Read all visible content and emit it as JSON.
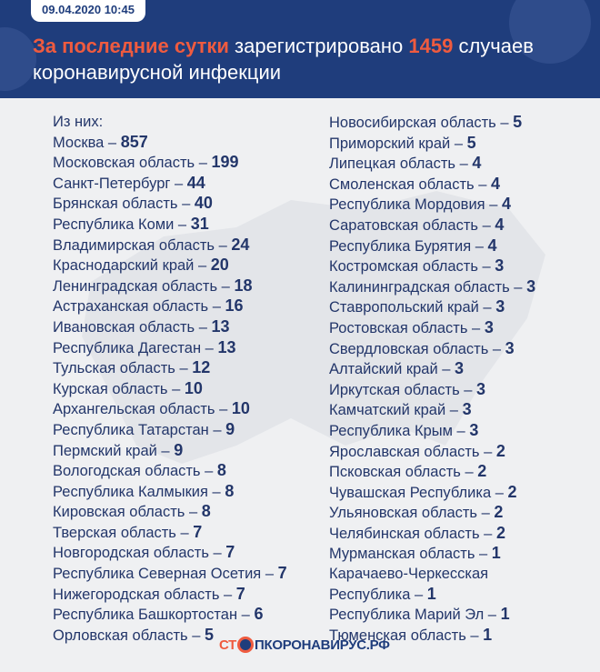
{
  "header": {
    "date": "09.04.2020 10:45",
    "title_accent": "За последние сутки",
    "title_mid": " зарегистрировано ",
    "title_number": "1459",
    "title_end": " случаев коронавирусной инфекции"
  },
  "left_intro": "Из них:",
  "left": [
    {
      "name": "Москва",
      "value": "857"
    },
    {
      "name": "Московская область",
      "value": "199"
    },
    {
      "name": "Санкт-Петербург",
      "value": "44"
    },
    {
      "name": "Брянская область",
      "value": "40"
    },
    {
      "name": "Республика Коми",
      "value": "31"
    },
    {
      "name": "Владимирская область",
      "value": "24"
    },
    {
      "name": "Краснодарский край",
      "value": "20"
    },
    {
      "name": "Ленинградская область",
      "value": "18"
    },
    {
      "name": "Астраханская область",
      "value": "16"
    },
    {
      "name": "Ивановская область",
      "value": "13"
    },
    {
      "name": "Республика Дагестан",
      "value": "13"
    },
    {
      "name": "Тульская область",
      "value": "12"
    },
    {
      "name": "Курская область",
      "value": "10"
    },
    {
      "name": "Архангельская область",
      "value": "10"
    },
    {
      "name": "Республика Татарстан",
      "value": "9"
    },
    {
      "name": "Пермский край",
      "value": "9"
    },
    {
      "name": "Вологодская область",
      "value": "8"
    },
    {
      "name": "Республика Калмыкия",
      "value": "8"
    },
    {
      "name": "Кировская область",
      "value": "8"
    },
    {
      "name": "Тверская область",
      "value": "7"
    },
    {
      "name": "Новгородская область",
      "value": "7"
    },
    {
      "name": "Республика Северная Осетия",
      "value": "7"
    },
    {
      "name": "Нижегородская область",
      "value": "7"
    },
    {
      "name": "Республика Башкортостан",
      "value": "6"
    },
    {
      "name": "Орловская область",
      "value": "5"
    }
  ],
  "right": [
    {
      "name": "Новосибирская область",
      "value": "5"
    },
    {
      "name": "Приморский край",
      "value": "5"
    },
    {
      "name": "Липецкая область",
      "value": "4"
    },
    {
      "name": "Смоленская область",
      "value": "4"
    },
    {
      "name": "Республика Мордовия",
      "value": "4"
    },
    {
      "name": "Саратовская область",
      "value": "4"
    },
    {
      "name": "Республика Бурятия",
      "value": "4"
    },
    {
      "name": "Костромская область",
      "value": "3"
    },
    {
      "name": "Калининградская область",
      "value": "3"
    },
    {
      "name": "Ставропольский край",
      "value": "3"
    },
    {
      "name": "Ростовская область",
      "value": "3"
    },
    {
      "name": "Свердловская область",
      "value": "3"
    },
    {
      "name": "Алтайский край",
      "value": "3"
    },
    {
      "name": "Иркутская область",
      "value": "3"
    },
    {
      "name": "Камчатский край",
      "value": "3"
    },
    {
      "name": "Республика Крым",
      "value": "3"
    },
    {
      "name": "Ярославская область",
      "value": "2"
    },
    {
      "name": "Псковская область",
      "value": "2"
    },
    {
      "name": "Чувашская Республика",
      "value": "2"
    },
    {
      "name": "Ульяновская область",
      "value": "2"
    },
    {
      "name": "Челябинская область",
      "value": "2"
    },
    {
      "name": "Мурманская область",
      "value": "1"
    },
    {
      "name": "Карачаево-Черкесская\nРеспублика",
      "value": "1"
    },
    {
      "name": "Республика Марий Эл",
      "value": "1"
    },
    {
      "name": "Тюменская область",
      "value": "1"
    }
  ],
  "logo": {
    "part1": "СТ",
    "part2": "ПКОРОНАВИРУС.РФ",
    "orange": "#ef5b3f",
    "blue": "#1f3d7c"
  }
}
